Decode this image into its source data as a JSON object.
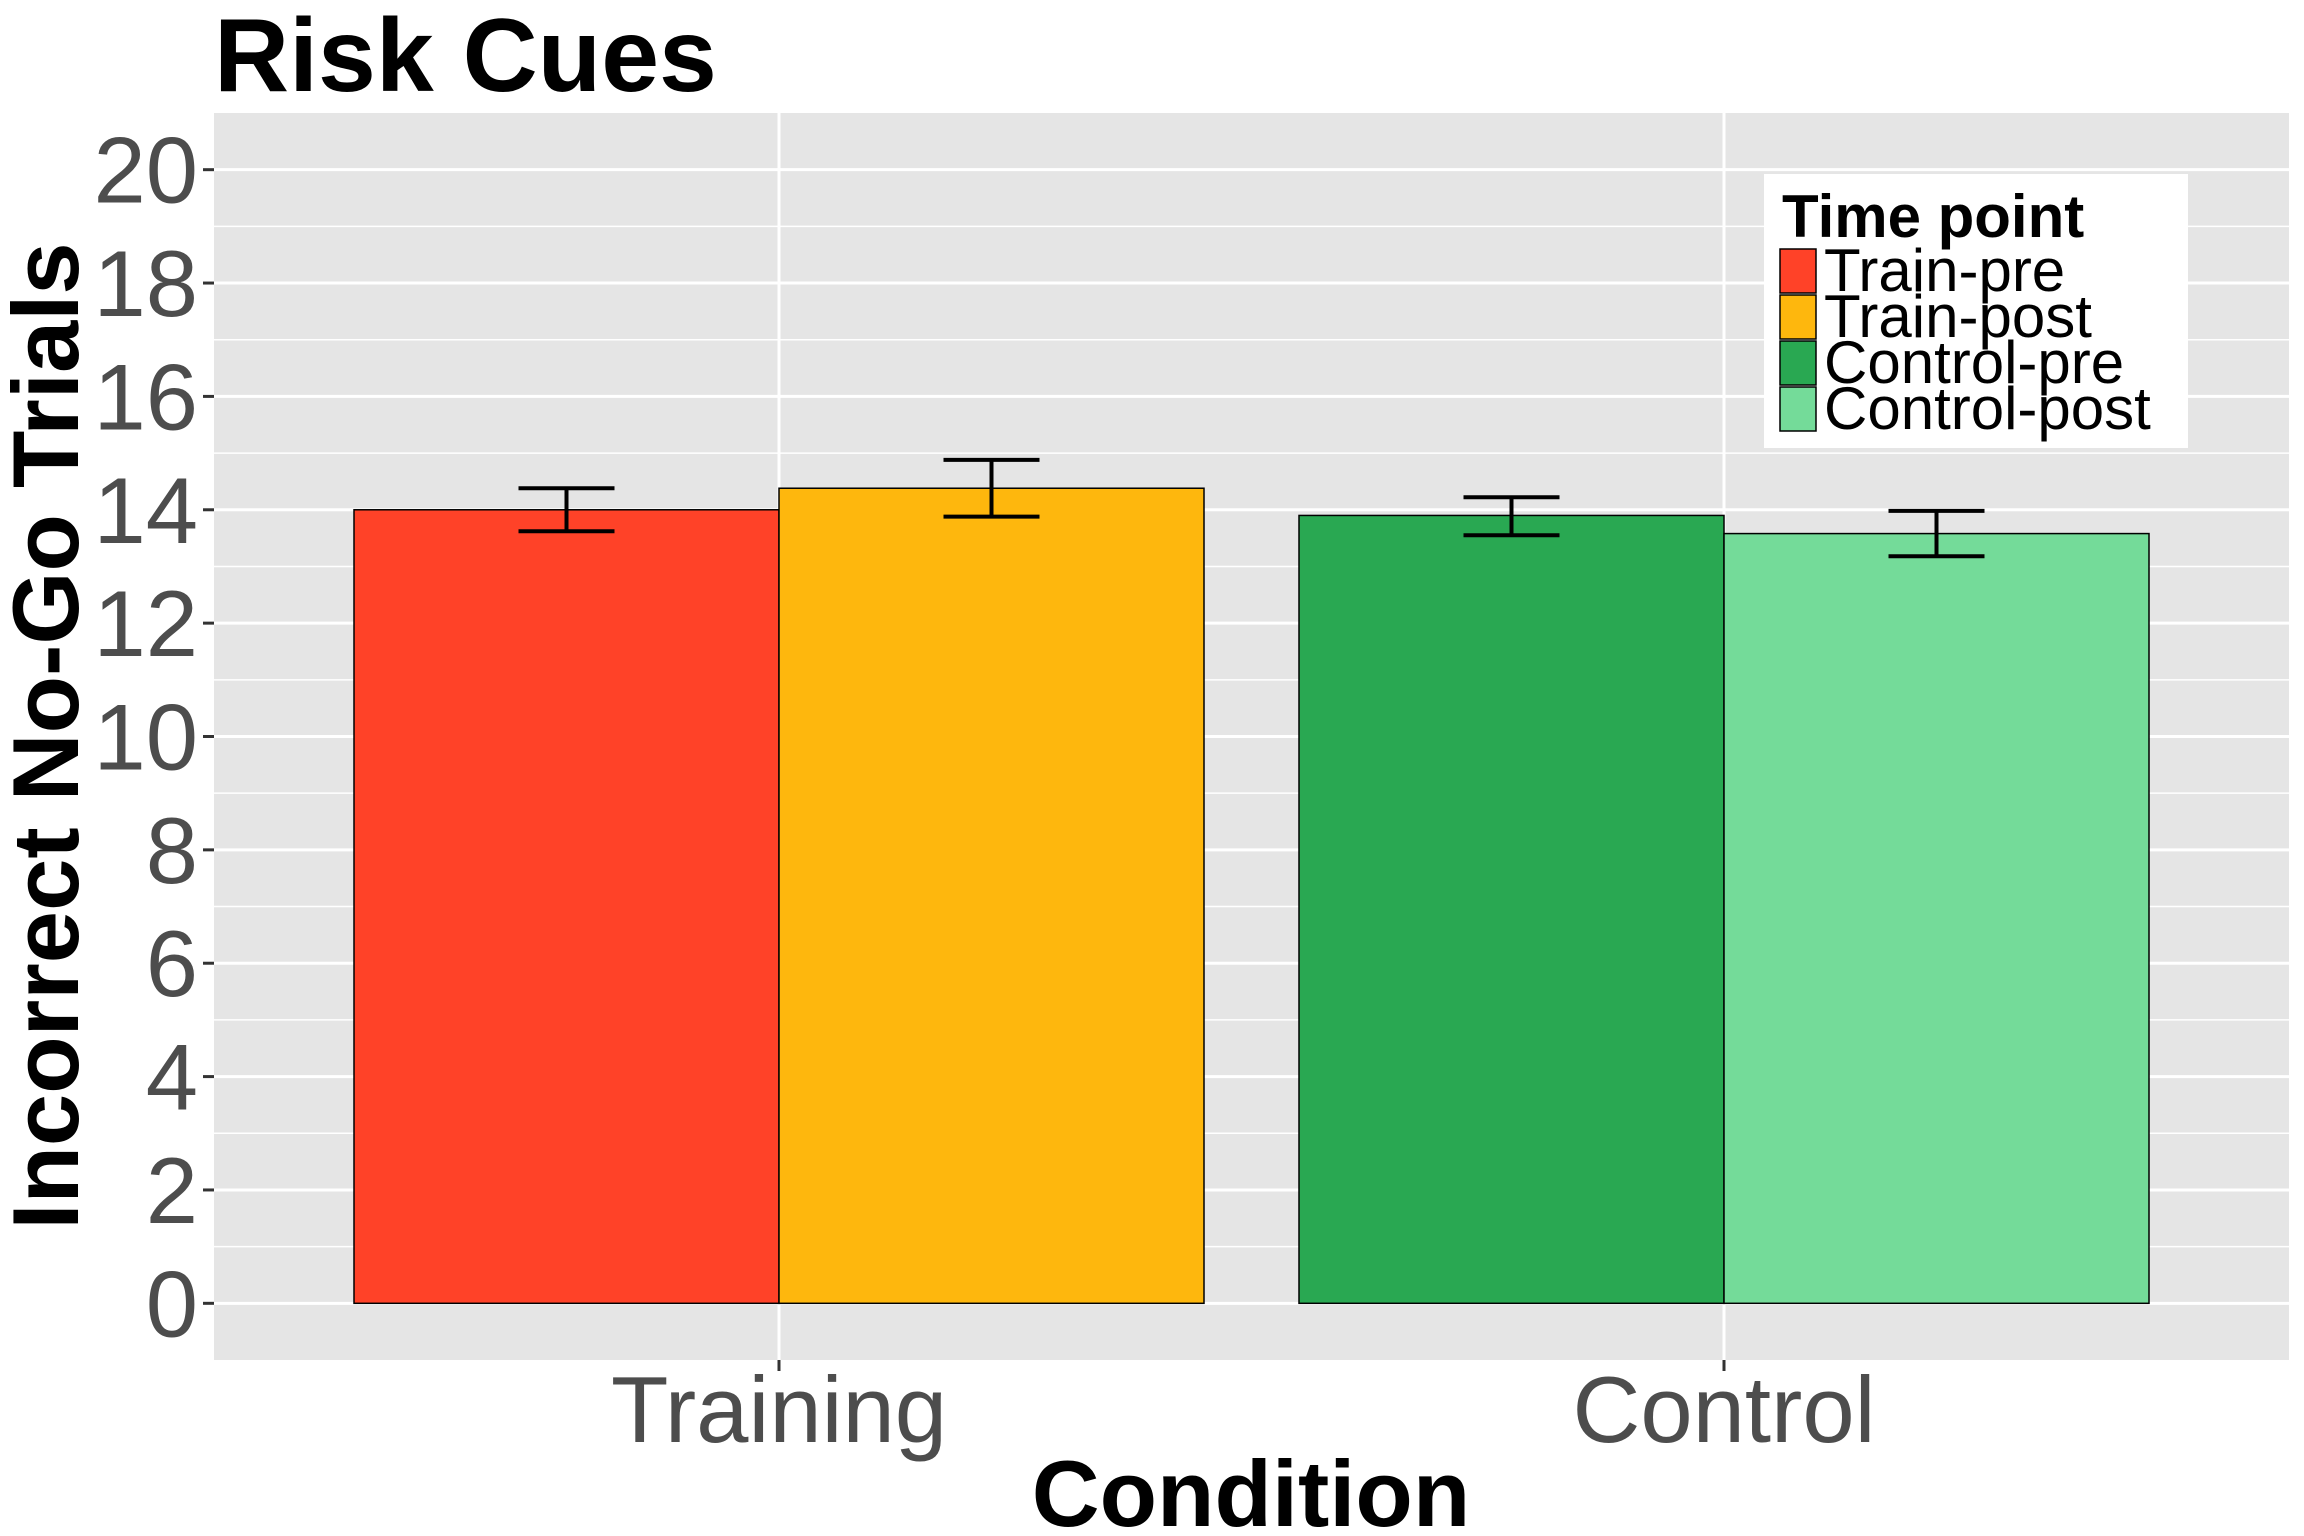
{
  "chart_data": {
    "type": "bar",
    "title": "Risk Cues",
    "xlabel": "Condition",
    "ylabel": "Incorrect No-Go Trials",
    "categories": [
      "Training",
      "Control"
    ],
    "ylim": [
      -1,
      21
    ],
    "yticks": [
      0,
      2,
      4,
      6,
      8,
      10,
      12,
      14,
      16,
      18,
      20
    ],
    "grid": true,
    "legend": {
      "title": "Time point",
      "placement": "top-right, inside plot"
    },
    "series": [
      {
        "name": "Train-pre",
        "color": "#FF4228",
        "category": "Training",
        "value": 14.0,
        "error": [
          13.62,
          14.38
        ]
      },
      {
        "name": "Train-post",
        "color": "#FEB70D",
        "category": "Training",
        "value": 14.38,
        "error": [
          13.88,
          14.88
        ]
      },
      {
        "name": "Control-pre",
        "color": "#29A852",
        "category": "Control",
        "value": 13.9,
        "error": [
          13.55,
          14.22
        ]
      },
      {
        "name": "Control-post",
        "color": "#74DB99",
        "category": "Control",
        "value": 13.58,
        "error": [
          13.18,
          13.98
        ]
      }
    ],
    "colors": {
      "panel": "#E5E5E5",
      "grid": "#FFFFFF",
      "tick_text": "#4D4D4D",
      "bar_outline": "#000000"
    }
  }
}
